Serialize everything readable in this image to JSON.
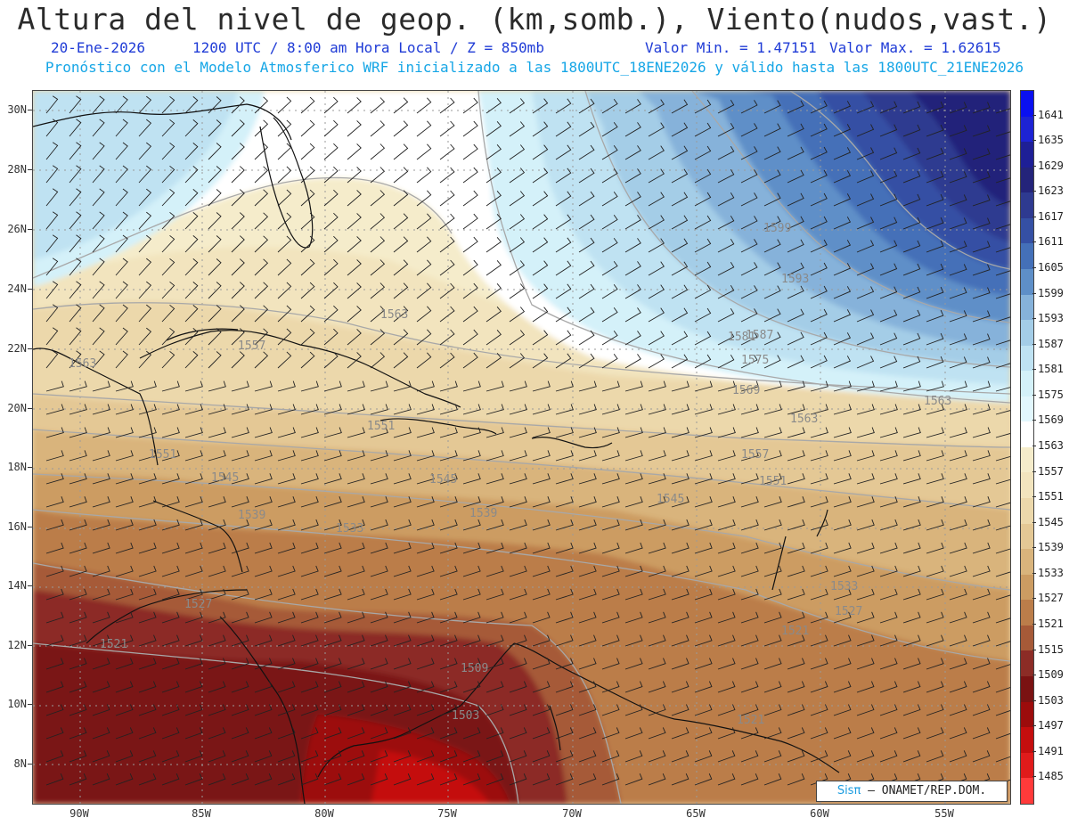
{
  "header": {
    "title": "Altura del nivel de geop. (km,somb.), Viento(nudos,vast.)",
    "date": "20-Ene-2026",
    "time": "1200 UTC / 8:00 am Hora Local / Z = 850mb",
    "vmin": "Valor Min. = 1.47151",
    "vmax": "Valor Max. = 1.62615",
    "model_line": "Pronóstico con el Modelo Atmosferico WRF inicializado a las 1800UTC_18ENE2026 y válido hasta las  1800UTC_21ENE2026"
  },
  "axes": {
    "lat_labels": [
      "30N",
      "28N",
      "26N",
      "24N",
      "22N",
      "20N",
      "18N",
      "16N",
      "14N",
      "12N",
      "10N",
      "8N"
    ],
    "lon_labels": [
      "90W",
      "85W",
      "80W",
      "75W",
      "70W",
      "65W",
      "60W",
      "55W"
    ]
  },
  "colorbar": {
    "labels": [
      "1641",
      "1635",
      "1629",
      "1623",
      "1617",
      "1611",
      "1605",
      "1599",
      "1593",
      "1587",
      "1581",
      "1575",
      "1569",
      "1563",
      "1557",
      "1551",
      "1545",
      "1539",
      "1533",
      "1527",
      "1521",
      "1515",
      "1509",
      "1503",
      "1497",
      "1491",
      "1485"
    ],
    "colors": [
      "#0a10f0",
      "#1d23d4",
      "#1e1f96",
      "#24247a",
      "#2e3a90",
      "#3550a4",
      "#4470b8",
      "#5e8fc8",
      "#86b2da",
      "#a4cde7",
      "#bfe2f2",
      "#d4f1f9",
      "#e2f7fd",
      "#ffffff",
      "#f5eccb",
      "#f2e4be",
      "#ecd8ab",
      "#e4c895",
      "#d9b47c",
      "#cc9c62",
      "#bb7d4a",
      "#a65a38",
      "#8c2c26",
      "#7a1212",
      "#9c0c0c",
      "#c40e0e",
      "#e01b1b",
      "#ff3a3a"
    ]
  },
  "contour_labels": [
    "1563",
    "1563",
    "1557",
    "1551",
    "1551",
    "1545",
    "1545",
    "1539",
    "1539",
    "1533",
    "1527",
    "1521",
    "1521",
    "1509",
    "1503",
    "1521",
    "1593",
    "1587",
    "1581",
    "1575",
    "1569",
    "1563",
    "1557",
    "1551",
    "1545",
    "1533",
    "1527",
    "1563",
    "1599"
  ],
  "credit": {
    "logo": "Sisπ",
    "text": " – ONAMET/REP.DOM."
  }
}
